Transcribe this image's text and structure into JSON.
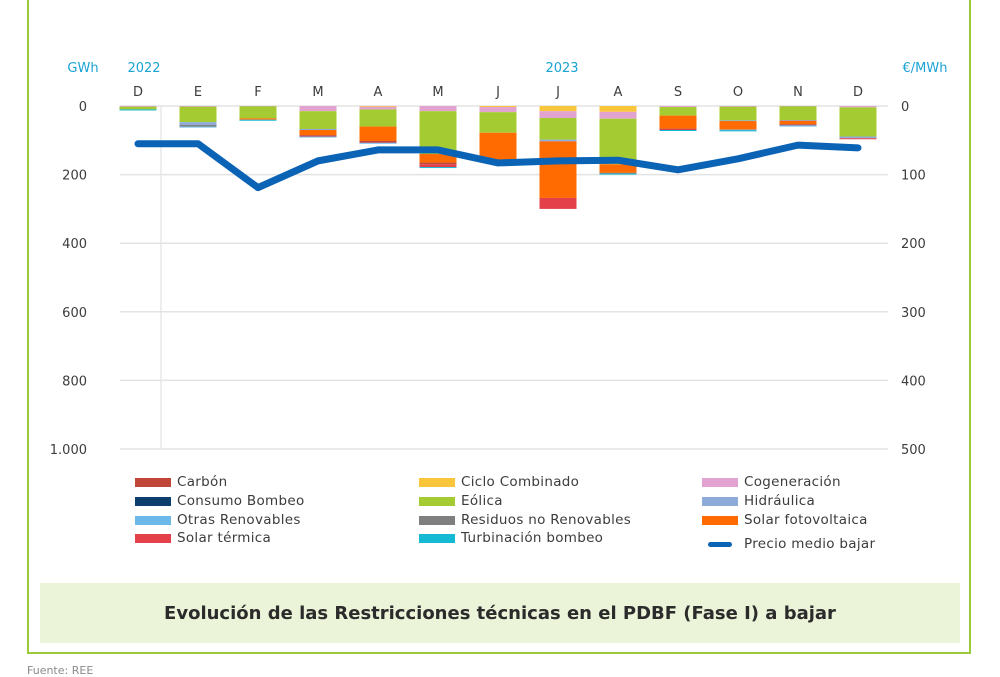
{
  "chart_data": {
    "type": "bar",
    "subtype": "stacked-bar-with-line",
    "title": "Evolución de las Restricciones técnicas en el PDBF (Fase I) a bajar",
    "source": "Fuente: REE",
    "ylabel_left": "GWh",
    "ylabel_right": "€/MWh",
    "year_labels": [
      {
        "label": "2022",
        "at": 0
      },
      {
        "label": "2023",
        "at": 7
      }
    ],
    "categories": [
      "D",
      "E",
      "F",
      "M",
      "A",
      "M",
      "J",
      "J",
      "A",
      "S",
      "O",
      "N",
      "D"
    ],
    "ylim_left": [
      0,
      1000
    ],
    "ylim_right": [
      0,
      500
    ],
    "y_inverted": true,
    "yticks_left": [
      "0",
      "200",
      "400",
      "600",
      "800",
      "1.000"
    ],
    "yticks_right": [
      "0",
      "100",
      "200",
      "300",
      "400",
      "500"
    ],
    "grid": true,
    "legend_position": "bottom",
    "series": [
      {
        "name": "Ciclo Combinado",
        "color": "#f9c53a",
        "values": [
          0,
          0,
          0,
          0,
          2,
          0,
          3,
          15,
          17,
          0,
          0,
          0,
          0
        ]
      },
      {
        "name": "Cogeneración",
        "color": "#e3a3d0",
        "values": [
          2,
          2,
          1,
          15,
          8,
          15,
          15,
          20,
          20,
          3,
          2,
          1,
          4
        ]
      },
      {
        "name": "Eólica",
        "color": "#a4cc32",
        "values": [
          8,
          45,
          35,
          52,
          50,
          125,
          60,
          63,
          133,
          25,
          40,
          40,
          85
        ]
      },
      {
        "name": "Hidráulica",
        "color": "#8eaadb",
        "values": [
          0,
          8,
          0,
          3,
          0,
          0,
          0,
          5,
          0,
          0,
          2,
          2,
          5
        ]
      },
      {
        "name": "Solar fotovoltaica",
        "color": "#ff6b00",
        "values": [
          0,
          0,
          4,
          15,
          42,
          25,
          80,
          165,
          25,
          38,
          25,
          10,
          0
        ]
      },
      {
        "name": "Carbón",
        "color": "#c0463a",
        "values": [
          0,
          0,
          0,
          2,
          3,
          5,
          0,
          0,
          0,
          2,
          0,
          3,
          0
        ]
      },
      {
        "name": "Solar térmica",
        "color": "#e3404a",
        "values": [
          0,
          0,
          0,
          2,
          2,
          8,
          0,
          32,
          0,
          2,
          0,
          0,
          3
        ]
      },
      {
        "name": "Residuos no Renovables",
        "color": "#7f7f7f",
        "values": [
          0,
          5,
          0,
          0,
          0,
          0,
          0,
          0,
          2,
          0,
          0,
          1,
          0
        ]
      },
      {
        "name": "Otras Renovables",
        "color": "#6cb8e8",
        "values": [
          0,
          2,
          0,
          1,
          3,
          0,
          0,
          0,
          0,
          0,
          2,
          1,
          0
        ]
      },
      {
        "name": "Turbinación bombeo",
        "color": "#14b9d4",
        "values": [
          3,
          0,
          3,
          0,
          0,
          2,
          0,
          0,
          1,
          2,
          1,
          0,
          0
        ]
      },
      {
        "name": "Consumo Bombeo",
        "color": "#0d3f6e",
        "values": [
          0,
          0,
          0,
          0,
          0,
          0,
          0,
          0,
          0,
          0,
          0,
          0,
          0
        ]
      }
    ],
    "line": {
      "name": "Precio medio bajar",
      "color": "#0a63b5",
      "axis": "right",
      "values": [
        55,
        55,
        119,
        80,
        64,
        64,
        83,
        80,
        79,
        93,
        77,
        57,
        61
      ]
    }
  },
  "legend": [
    {
      "name": "Carbón",
      "color": "#c0463a",
      "kind": "bar"
    },
    {
      "name": "Consumo Bombeo",
      "color": "#0d3f6e",
      "kind": "bar"
    },
    {
      "name": "Otras Renovables",
      "color": "#6cb8e8",
      "kind": "bar"
    },
    {
      "name": "Solar térmica",
      "color": "#e3404a",
      "kind": "bar"
    },
    {
      "name": "Ciclo Combinado",
      "color": "#f9c53a",
      "kind": "bar"
    },
    {
      "name": "Eólica",
      "color": "#a4cc32",
      "kind": "bar"
    },
    {
      "name": "Residuos no Renovables",
      "color": "#7f7f7f",
      "kind": "bar"
    },
    {
      "name": "Turbinación bombeo",
      "color": "#14b9d4",
      "kind": "bar"
    },
    {
      "name": "Cogeneración",
      "color": "#e3a3d0",
      "kind": "bar"
    },
    {
      "name": "Hidráulica",
      "color": "#8eaadb",
      "kind": "bar"
    },
    {
      "name": "Solar fotovoltaica",
      "color": "#ff6b00",
      "kind": "bar"
    },
    {
      "name": "Precio medio bajar",
      "color": "#0a63b5",
      "kind": "line"
    }
  ],
  "caption": "Evolución de las Restricciones técnicas en el PDBF (Fase I) a bajar",
  "source": "Fuente: REE"
}
